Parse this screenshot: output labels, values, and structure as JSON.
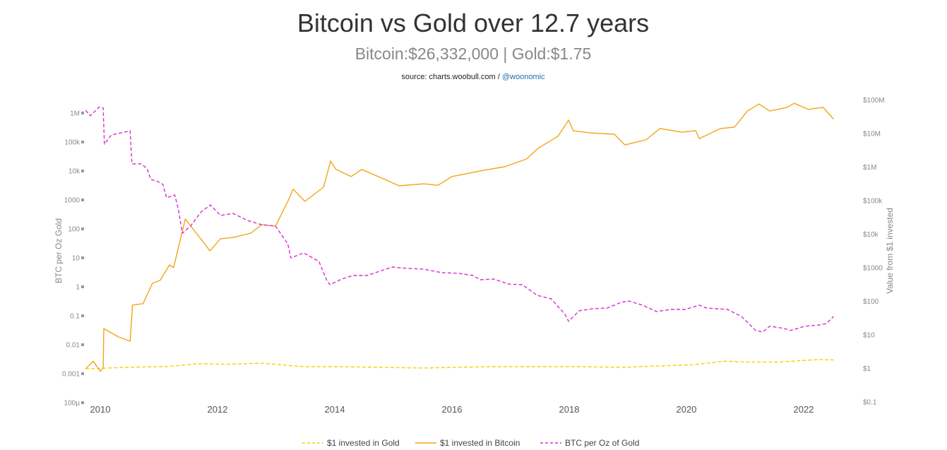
{
  "header": {
    "title": "Bitcoin vs Gold over 12.7 years",
    "subtitle": "Bitcoin:$26,332,000 | Gold:$1.75",
    "source_prefix": "source: charts.woobull.com / ",
    "source_handle": "@woonomic"
  },
  "chart_data": {
    "type": "line",
    "title": "Bitcoin vs Gold over 12.7 years",
    "subtitle": "Bitcoin:$26,332,000 | Gold:$1.75",
    "x_ticks": [
      "2010",
      "2012",
      "2014",
      "2016",
      "2018",
      "2020",
      "2022"
    ],
    "x_tick_values": [
      2010,
      2012,
      2014,
      2016,
      2018,
      2020,
      2022
    ],
    "xlim": [
      2009.75,
      2022.51
    ],
    "y_left": {
      "label": "BTC per Oz Gold",
      "scale": "log",
      "range": [
        0.0001,
        1000000
      ],
      "ticks": [
        "100µ",
        "0.001",
        "0.01",
        "0.1",
        "1",
        "10",
        "100",
        "1000",
        "10k",
        "100k",
        "1M"
      ]
    },
    "y_right": {
      "label": "Value from $1 invested",
      "scale": "log",
      "range": [
        0.1,
        100000000
      ],
      "ticks": [
        "$0.1",
        "$1",
        "$10",
        "$100",
        "$1000",
        "$10k",
        "$100k",
        "$1M",
        "$10M",
        "$100M"
      ]
    },
    "grid": false,
    "legend_placement": "bottom",
    "series": [
      {
        "name": "$1 invested in Gold",
        "axis": "right",
        "color": "#f5d000",
        "dash": true,
        "points": [
          [
            2009.75,
            0.95
          ],
          [
            2010.45,
            1.05
          ],
          [
            2011.18,
            1.12
          ],
          [
            2011.66,
            1.35
          ],
          [
            2012.15,
            1.3
          ],
          [
            2012.75,
            1.4
          ],
          [
            2013.47,
            1.1
          ],
          [
            2014.07,
            1.1
          ],
          [
            2014.8,
            1.05
          ],
          [
            2015.52,
            1.0
          ],
          [
            2016.0,
            1.05
          ],
          [
            2016.72,
            1.1
          ],
          [
            2017.45,
            1.1
          ],
          [
            2018.17,
            1.1
          ],
          [
            2018.89,
            1.05
          ],
          [
            2019.49,
            1.15
          ],
          [
            2020.1,
            1.25
          ],
          [
            2020.64,
            1.6
          ],
          [
            2021.06,
            1.5
          ],
          [
            2021.54,
            1.5
          ],
          [
            2022.27,
            1.8
          ],
          [
            2022.51,
            1.75
          ]
        ]
      },
      {
        "name": "$1 invested in Bitcoin",
        "axis": "right",
        "color": "#f2a516",
        "dash": false,
        "points": [
          [
            2009.75,
            0.95
          ],
          [
            2009.88,
            1.6
          ],
          [
            2010.0,
            0.8
          ],
          [
            2010.05,
            1
          ],
          [
            2010.06,
            15
          ],
          [
            2010.31,
            8.5
          ],
          [
            2010.51,
            6.3
          ],
          [
            2010.55,
            75
          ],
          [
            2010.73,
            83
          ],
          [
            2010.89,
            336
          ],
          [
            2011.02,
            410
          ],
          [
            2011.18,
            1180
          ],
          [
            2011.25,
            980
          ],
          [
            2011.45,
            27600
          ],
          [
            2011.59,
            13400
          ],
          [
            2011.78,
            5100
          ],
          [
            2011.87,
            3100
          ],
          [
            2012.05,
            7100
          ],
          [
            2012.27,
            7800
          ],
          [
            2012.57,
            10500
          ],
          [
            2012.75,
            18700
          ],
          [
            2012.99,
            17000
          ],
          [
            2013.2,
            93000
          ],
          [
            2013.29,
            214000
          ],
          [
            2013.49,
            93000
          ],
          [
            2013.81,
            245000
          ],
          [
            2013.93,
            1480000
          ],
          [
            2014.02,
            830000
          ],
          [
            2014.28,
            510000
          ],
          [
            2014.46,
            830000
          ],
          [
            2014.8,
            460000
          ],
          [
            2015.1,
            270000
          ],
          [
            2015.52,
            310000
          ],
          [
            2015.76,
            280000
          ],
          [
            2016.0,
            510000
          ],
          [
            2016.48,
            750000
          ],
          [
            2016.9,
            1000000
          ],
          [
            2017.27,
            1700000
          ],
          [
            2017.47,
            3550000
          ],
          [
            2017.81,
            8100000
          ],
          [
            2017.99,
            24500000
          ],
          [
            2018.07,
            11800000
          ],
          [
            2018.35,
            10200000
          ],
          [
            2018.77,
            9300000
          ],
          [
            2018.95,
            4470000
          ],
          [
            2019.31,
            6300000
          ],
          [
            2019.55,
            13800000
          ],
          [
            2019.92,
            10700000
          ],
          [
            2020.16,
            11800000
          ],
          [
            2020.22,
            6900000
          ],
          [
            2020.58,
            13800000
          ],
          [
            2020.82,
            15100000
          ],
          [
            2021.04,
            45700000
          ],
          [
            2021.24,
            74000000
          ],
          [
            2021.42,
            45700000
          ],
          [
            2021.72,
            58900000
          ],
          [
            2021.84,
            77600000
          ],
          [
            2022.08,
            51300000
          ],
          [
            2022.33,
            58900000
          ],
          [
            2022.51,
            26332000
          ]
        ]
      },
      {
        "name": "BTC per Oz of Gold",
        "axis": "left",
        "color": "#d62fd0",
        "dash": true,
        "points": [
          [
            2009.75,
            1300000
          ],
          [
            2009.83,
            850000
          ],
          [
            2009.98,
            1700000
          ],
          [
            2010.05,
            1600000
          ],
          [
            2010.07,
            89000
          ],
          [
            2010.19,
            186000
          ],
          [
            2010.36,
            219000
          ],
          [
            2010.51,
            257000
          ],
          [
            2010.54,
            18600
          ],
          [
            2010.7,
            18600
          ],
          [
            2010.8,
            12500
          ],
          [
            2010.86,
            5400
          ],
          [
            2010.96,
            4800
          ],
          [
            2011.07,
            3600
          ],
          [
            2011.13,
            1250
          ],
          [
            2011.27,
            1580
          ],
          [
            2011.33,
            540
          ],
          [
            2011.4,
            75
          ],
          [
            2011.54,
            132
          ],
          [
            2011.72,
            410
          ],
          [
            2011.88,
            710
          ],
          [
            2012.05,
            310
          ],
          [
            2012.27,
            360
          ],
          [
            2012.51,
            208
          ],
          [
            2012.75,
            148
          ],
          [
            2012.99,
            132
          ],
          [
            2013.2,
            32
          ],
          [
            2013.25,
            10.5
          ],
          [
            2013.47,
            15.7
          ],
          [
            2013.73,
            8
          ],
          [
            2013.87,
            1.66
          ],
          [
            2013.92,
            1.25
          ],
          [
            2014.12,
            1.96
          ],
          [
            2014.31,
            2.6
          ],
          [
            2014.55,
            2.6
          ],
          [
            2014.98,
            5.1
          ],
          [
            2015.22,
            4.6
          ],
          [
            2015.52,
            4.3
          ],
          [
            2015.82,
            3.25
          ],
          [
            2016.12,
            3.1
          ],
          [
            2016.36,
            2.6
          ],
          [
            2016.48,
            1.85
          ],
          [
            2016.72,
            1.96
          ],
          [
            2016.96,
            1.32
          ],
          [
            2017.2,
            1.25
          ],
          [
            2017.45,
            0.54
          ],
          [
            2017.69,
            0.41
          ],
          [
            2017.93,
            0.118
          ],
          [
            2017.99,
            0.068
          ],
          [
            2018.17,
            0.158
          ],
          [
            2018.41,
            0.185
          ],
          [
            2018.65,
            0.196
          ],
          [
            2018.89,
            0.31
          ],
          [
            2019.01,
            0.345
          ],
          [
            2019.25,
            0.245
          ],
          [
            2019.49,
            0.148
          ],
          [
            2019.73,
            0.175
          ],
          [
            2019.98,
            0.175
          ],
          [
            2020.22,
            0.245
          ],
          [
            2020.34,
            0.196
          ],
          [
            2020.7,
            0.175
          ],
          [
            2020.94,
            0.1
          ],
          [
            2021.18,
            0.033
          ],
          [
            2021.3,
            0.029
          ],
          [
            2021.42,
            0.046
          ],
          [
            2021.66,
            0.039
          ],
          [
            2021.78,
            0.033
          ],
          [
            2022.02,
            0.046
          ],
          [
            2022.27,
            0.051
          ],
          [
            2022.39,
            0.057
          ],
          [
            2022.51,
            0.1
          ]
        ]
      }
    ]
  }
}
